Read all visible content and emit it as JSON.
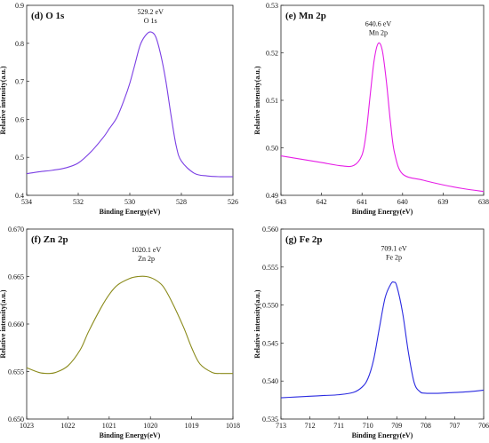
{
  "chart_data": [
    {
      "type": "line",
      "panel_label": "(d)  O 1s",
      "xlabel": "Binding Energy(eV)",
      "ylabel": "Relative intensity(a.u.)",
      "xlim": [
        534,
        526
      ],
      "ylim": [
        0.4,
        0.9
      ],
      "xticks": [
        "534",
        "532",
        "530",
        "528",
        "526"
      ],
      "yticks": [
        "0.4",
        "0.5",
        "0.6",
        "0.7",
        "0.8",
        "0.9"
      ],
      "annotation": [
        "529.2 eV",
        "O 1s"
      ],
      "annotation_at": [
        529.2,
        0.9
      ],
      "color": "#7b3fe4",
      "series": [
        {
          "x": [
            534,
            533.5,
            533,
            532.5,
            532,
            531.5,
            531,
            530.8,
            530.5,
            530.2,
            530,
            529.8,
            529.6,
            529.4,
            529.2,
            529,
            528.8,
            528.6,
            528.4,
            528.2,
            528,
            527.5,
            527,
            526.5,
            526
          ],
          "y": [
            0.457,
            0.462,
            0.466,
            0.472,
            0.485,
            0.515,
            0.555,
            0.575,
            0.605,
            0.655,
            0.695,
            0.745,
            0.795,
            0.82,
            0.83,
            0.818,
            0.77,
            0.7,
            0.61,
            0.53,
            0.49,
            0.458,
            0.451,
            0.449,
            0.449
          ]
        }
      ]
    },
    {
      "type": "line",
      "panel_label": "(e)  Mn 2p",
      "xlabel": "Binding Energy(eV)",
      "ylabel": "Relative intensity(a.u.)",
      "xlim": [
        643,
        638
      ],
      "ylim": [
        0.49,
        0.53
      ],
      "xticks": [
        "643",
        "642",
        "641",
        "640",
        "639",
        "638"
      ],
      "yticks": [
        "0.49",
        "0.50",
        "0.51",
        "0.52",
        "0.53"
      ],
      "annotation": [
        "640.6 eV",
        "Mn 2p"
      ],
      "annotation_at": [
        640.6,
        0.5275
      ],
      "color": "#e61ee6",
      "series": [
        {
          "x": [
            643,
            642.5,
            642,
            641.5,
            641.2,
            641,
            640.9,
            640.8,
            640.7,
            640.6,
            640.5,
            640.4,
            640.3,
            640.2,
            640,
            639.5,
            639,
            638.5,
            638
          ],
          "y": [
            0.4983,
            0.4976,
            0.4969,
            0.4962,
            0.4963,
            0.4985,
            0.503,
            0.511,
            0.5185,
            0.522,
            0.5205,
            0.514,
            0.5055,
            0.499,
            0.4945,
            0.4932,
            0.4922,
            0.4914,
            0.4908
          ]
        }
      ]
    },
    {
      "type": "line",
      "panel_label": "(f)  Zn 2p",
      "xlabel": "Binding Energy(eV)",
      "ylabel": "Relative intensity(a.u.)",
      "xlim": [
        1023,
        1018
      ],
      "ylim": [
        0.65,
        0.67
      ],
      "xticks": [
        "1023",
        "1022",
        "1021",
        "1020",
        "1019",
        "1018"
      ],
      "yticks": [
        "0.650",
        "0.655",
        "0.660",
        "0.665",
        "0.670"
      ],
      "annotation": [
        "1020.1 eV",
        "Zn 2p"
      ],
      "annotation_at": [
        1020.1,
        0.6685
      ],
      "color": "#8a8a1a",
      "series": [
        {
          "x": [
            1023,
            1022.7,
            1022.5,
            1022.3,
            1022,
            1021.7,
            1021.5,
            1021.2,
            1021,
            1020.8,
            1020.5,
            1020.3,
            1020.1,
            1019.9,
            1019.7,
            1019.5,
            1019.2,
            1019,
            1018.8,
            1018.5,
            1018.3,
            1018
          ],
          "y": [
            0.6554,
            0.6549,
            0.6548,
            0.6549,
            0.6556,
            0.6573,
            0.6592,
            0.6617,
            0.6631,
            0.6641,
            0.6648,
            0.665,
            0.665,
            0.6647,
            0.664,
            0.6625,
            0.6597,
            0.6575,
            0.6558,
            0.6549,
            0.6548,
            0.6548
          ]
        }
      ]
    },
    {
      "type": "line",
      "panel_label": "(g)  Fe 2p",
      "xlabel": "Binding Energy(eV)",
      "ylabel": "Relative intensity(a.u.)",
      "xlim": [
        713,
        706
      ],
      "ylim": [
        0.535,
        0.56
      ],
      "xticks": [
        "713",
        "712",
        "711",
        "710",
        "709",
        "708",
        "707",
        "706"
      ],
      "yticks": [
        "0.535",
        "0.540",
        "0.545",
        "0.550",
        "0.555",
        "0.560"
      ],
      "annotation": [
        "709.1 eV",
        "Fe 2p"
      ],
      "annotation_at": [
        709.1,
        0.5583
      ],
      "color": "#2a2ae0",
      "series": [
        {
          "x": [
            713,
            712.5,
            712,
            711.5,
            711,
            710.5,
            710.2,
            710,
            709.8,
            709.6,
            709.4,
            709.2,
            709.1,
            709,
            708.8,
            708.6,
            708.4,
            708.2,
            708,
            707.5,
            707,
            706.5,
            706
          ],
          "y": [
            0.5378,
            0.5379,
            0.538,
            0.5381,
            0.5382,
            0.5385,
            0.5392,
            0.5403,
            0.5428,
            0.547,
            0.551,
            0.5528,
            0.553,
            0.5525,
            0.549,
            0.5438,
            0.5398,
            0.5386,
            0.5384,
            0.5384,
            0.5385,
            0.5386,
            0.5388
          ]
        }
      ]
    }
  ]
}
